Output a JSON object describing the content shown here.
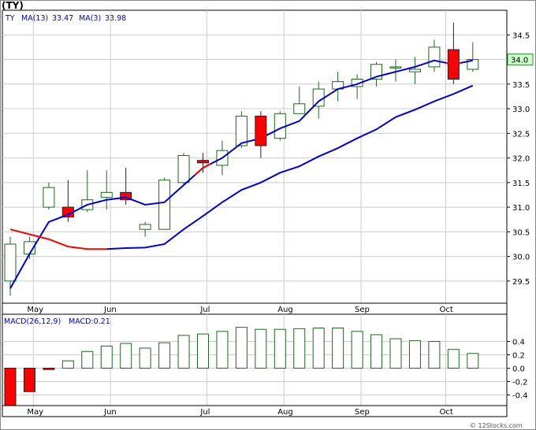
{
  "title": "(TY)",
  "legend": {
    "symbol": "TY",
    "ma13_label": "MA(13)",
    "ma13_value": "33.47",
    "ma3_label": "MA(3)",
    "ma3_value": "33.98"
  },
  "macd_legend": {
    "label": "MACD(26,12,9)",
    "value_label": "MACD:0.21"
  },
  "last_price_tag": "34.0",
  "watermark": "© 12Stocks.com",
  "colors": {
    "up_candle": "#1a6b1a",
    "down_candle": "#ff0000",
    "ma_fast": "#ff0000",
    "ma_slow": "#0000dd",
    "ma_line_blue": "#0000dd",
    "grid": "#cccccc",
    "last_tag_bg": "#ccffcc",
    "title": "#000000",
    "legend_text": "#0000cc"
  },
  "chart_data": [
    {
      "type": "candlestick",
      "ylim": [
        29.05,
        35.0
      ],
      "y_ticks": [
        29.5,
        30.0,
        30.5,
        31.0,
        31.5,
        32.0,
        32.5,
        33.0,
        33.5,
        34.0,
        34.5
      ],
      "y_tick_labels": [
        "29.5",
        "30.0",
        "30.5",
        "31.0",
        "31.5",
        "32.0",
        "32.5",
        "33.0",
        "33.5",
        "34.0",
        "34.5"
      ],
      "x_tick_labels": [
        "May",
        "Jun",
        "Jul",
        "Aug",
        "Sep",
        "Oct"
      ],
      "x_tick_index": [
        1.2,
        5.2,
        10.2,
        14.2,
        18.2,
        22.6
      ],
      "candles": [
        {
          "o": 29.5,
          "h": 30.4,
          "l": 29.2,
          "c": 30.25,
          "up": true
        },
        {
          "o": 30.05,
          "h": 30.4,
          "l": 29.95,
          "c": 30.3,
          "up": true
        },
        {
          "o": 31.0,
          "h": 31.5,
          "l": 30.95,
          "c": 31.4,
          "up": true
        },
        {
          "o": 31.0,
          "h": 31.55,
          "l": 30.7,
          "c": 30.8,
          "up": false
        },
        {
          "o": 30.95,
          "h": 31.75,
          "l": 30.9,
          "c": 31.15,
          "up": true
        },
        {
          "o": 31.2,
          "h": 31.75,
          "l": 30.95,
          "c": 31.3,
          "up": true
        },
        {
          "o": 31.3,
          "h": 31.8,
          "l": 31.05,
          "c": 31.15,
          "up": false
        },
        {
          "o": 30.55,
          "h": 30.7,
          "l": 30.4,
          "c": 30.65,
          "up": true
        },
        {
          "o": 30.55,
          "h": 31.6,
          "l": 30.55,
          "c": 31.55,
          "up": true
        },
        {
          "o": 31.5,
          "h": 32.1,
          "l": 31.45,
          "c": 32.05,
          "up": true
        },
        {
          "o": 31.95,
          "h": 32.1,
          "l": 31.7,
          "c": 31.9,
          "up": false
        },
        {
          "o": 31.85,
          "h": 32.35,
          "l": 31.65,
          "c": 32.15,
          "up": true
        },
        {
          "o": 32.25,
          "h": 32.95,
          "l": 32.2,
          "c": 32.85,
          "up": true
        },
        {
          "o": 32.85,
          "h": 32.95,
          "l": 32.0,
          "c": 32.25,
          "up": false
        },
        {
          "o": 32.4,
          "h": 32.95,
          "l": 32.35,
          "c": 32.9,
          "up": true
        },
        {
          "o": 32.9,
          "h": 33.45,
          "l": 32.9,
          "c": 33.1,
          "up": true
        },
        {
          "o": 33.05,
          "h": 33.55,
          "l": 32.8,
          "c": 33.4,
          "up": true
        },
        {
          "o": 33.4,
          "h": 33.75,
          "l": 33.15,
          "c": 33.55,
          "up": true
        },
        {
          "o": 33.45,
          "h": 33.7,
          "l": 33.2,
          "c": 33.6,
          "up": true
        },
        {
          "o": 33.6,
          "h": 33.95,
          "l": 33.45,
          "c": 33.9,
          "up": true
        },
        {
          "o": 33.85,
          "h": 34.0,
          "l": 33.55,
          "c": 33.85,
          "up": true
        },
        {
          "o": 33.75,
          "h": 34.05,
          "l": 33.5,
          "c": 33.8,
          "up": true
        },
        {
          "o": 33.85,
          "h": 34.4,
          "l": 33.75,
          "c": 34.25,
          "up": true
        },
        {
          "o": 34.2,
          "h": 34.75,
          "l": 33.5,
          "c": 33.6,
          "up": false
        },
        {
          "o": 33.8,
          "h": 34.35,
          "l": 33.75,
          "c": 34.0,
          "up": true
        }
      ],
      "ma3_red": {
        "start_index": 0,
        "values": [
          30.55,
          30.45,
          30.35,
          30.2,
          30.15,
          30.15
        ]
      },
      "ma3_blue": {
        "start_index": 0,
        "values": [
          29.35,
          30.05,
          30.7,
          30.85,
          31.05,
          31.15,
          31.2,
          31.05,
          31.1,
          31.45,
          31.8,
          32.0,
          32.3,
          32.4,
          32.6,
          32.75,
          33.15,
          33.4,
          33.5,
          33.65,
          33.75,
          33.85,
          33.98,
          33.9,
          33.98
        ]
      },
      "ma13_blue": {
        "start_index": 5,
        "values": [
          30.15,
          30.17,
          30.18,
          30.25,
          30.55,
          30.82,
          31.1,
          31.35,
          31.5,
          31.7,
          31.83,
          32.03,
          32.2,
          32.4,
          32.58,
          32.83,
          32.98,
          33.15,
          33.3,
          33.47
        ]
      }
    },
    {
      "type": "bar",
      "ylim": [
        -0.62,
        0.62
      ],
      "y_ticks": [
        0.4,
        0.2,
        0.0,
        -0.2,
        -0.4
      ],
      "y_tick_labels": [
        "0.4",
        "0.2",
        "0.0",
        "-0.2",
        "-0.4"
      ],
      "x_tick_labels": [
        "May",
        "Jun",
        "Jul",
        "Aug",
        "Sep",
        "Oct"
      ],
      "values": [
        -0.62,
        -0.35,
        -0.02,
        0.11,
        0.25,
        0.33,
        0.37,
        0.3,
        0.38,
        0.49,
        0.51,
        0.55,
        0.61,
        0.58,
        0.58,
        0.59,
        0.6,
        0.6,
        0.55,
        0.5,
        0.44,
        0.41,
        0.4,
        0.28,
        0.22
      ]
    }
  ]
}
